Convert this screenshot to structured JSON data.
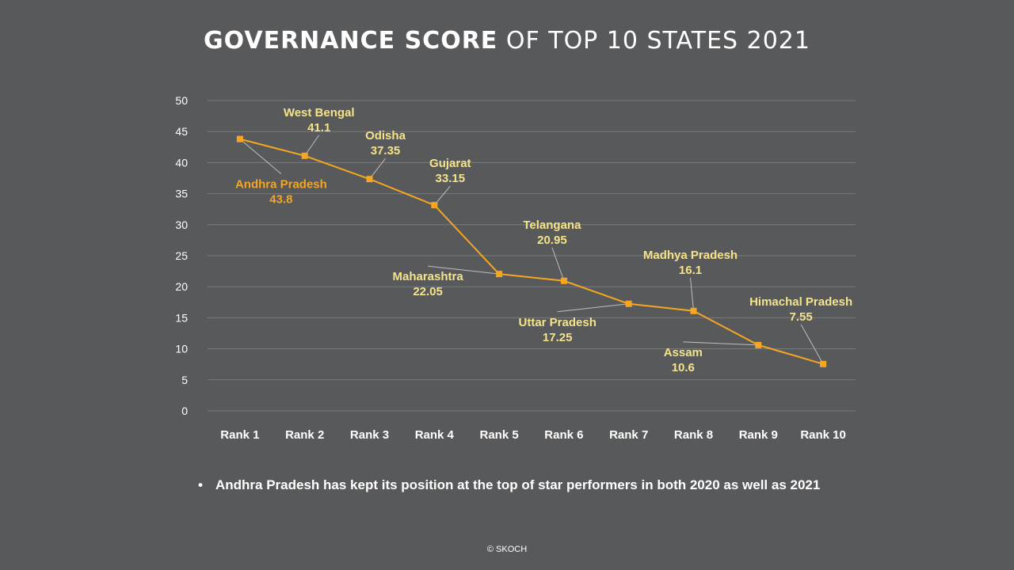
{
  "title": {
    "bold": "GOVERNANCE SCORE",
    "light": " OF TOP 10 STATES 2021"
  },
  "colors": {
    "background": "#58595b",
    "line": "#f5a623",
    "label_yellow": "#f4e38a",
    "label_orange": "#f5a623",
    "grid": "#7a7b7d"
  },
  "chart_data": {
    "type": "line",
    "title": "GOVERNANCE SCORE OF TOP 10 STATES 2021",
    "categories": [
      "Rank 1",
      "Rank 2",
      "Rank 3",
      "Rank 4",
      "Rank 5",
      "Rank 6",
      "Rank 7",
      "Rank 8",
      "Rank 9",
      "Rank 10"
    ],
    "states": [
      "Andhra Pradesh",
      "West Bengal",
      "Odisha",
      "Gujarat",
      "Maharashtra",
      "Telangana",
      "Uttar Pradesh",
      "Madhya Pradesh",
      "Assam",
      "Himachal Pradesh"
    ],
    "values": [
      43.8,
      41.1,
      37.35,
      33.15,
      22.05,
      20.95,
      17.25,
      16.1,
      10.6,
      7.55
    ],
    "value_labels": [
      "43.8",
      "41.1",
      "37.35",
      "33.15",
      "22.05",
      "20.95",
      "17.25",
      "16.1",
      "10.6",
      "7.55"
    ],
    "ylim": [
      0,
      50
    ],
    "yticks": [
      "0",
      "5",
      "10",
      "15",
      "20",
      "25",
      "30",
      "35",
      "40",
      "45",
      "50"
    ],
    "grid": true,
    "xlabel": "",
    "ylabel": ""
  },
  "bullet": {
    "symbol": "•",
    "text": "Andhra Pradesh has kept its position at the top of star performers in both 2020 as well as 2021"
  },
  "footer": "© SKOCH"
}
